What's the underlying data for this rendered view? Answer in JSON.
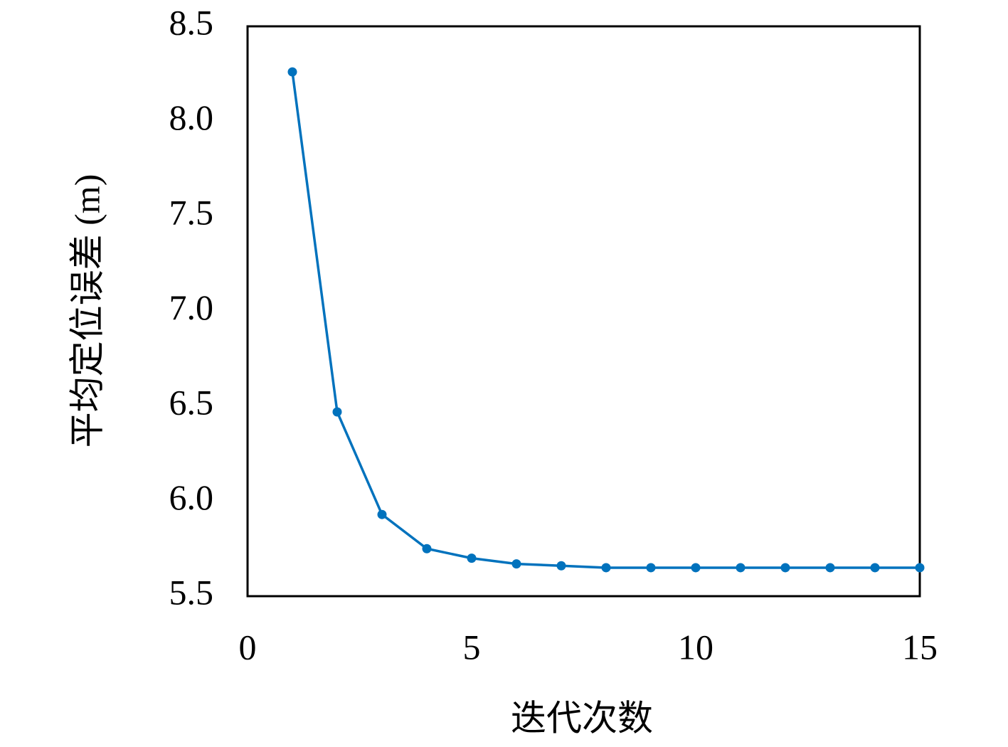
{
  "chart_data": {
    "type": "line",
    "xlabel": "迭代次数",
    "ylabel": "平均定位误差 (m)",
    "x": [
      1,
      2,
      3,
      4,
      5,
      6,
      7,
      8,
      9,
      10,
      11,
      12,
      13,
      14,
      15
    ],
    "series": [
      {
        "color": "#0072bd",
        "values": [
          8.26,
          6.47,
          5.93,
          5.75,
          5.7,
          5.67,
          5.66,
          5.65,
          5.65,
          5.65,
          5.65,
          5.65,
          5.65,
          5.65,
          5.65
        ]
      }
    ],
    "xlim": [
      0,
      15
    ],
    "xticks": [
      0,
      5,
      10,
      15
    ],
    "ylim": [
      5.5,
      8.5
    ],
    "yticks": [
      5.5,
      {
        "value": 6,
        "label": "6.0"
      },
      6.5,
      {
        "value": 7,
        "label": "7.0"
      },
      7.5,
      {
        "value": 8,
        "label": "8.0"
      },
      8.5
    ],
    "grid": false
  }
}
